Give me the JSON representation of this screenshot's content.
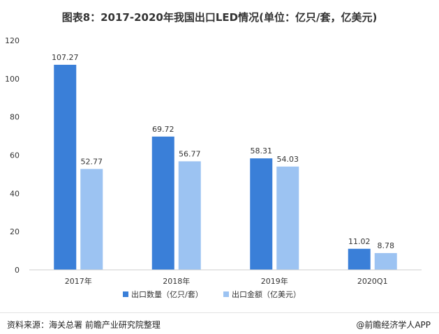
{
  "chart_data": {
    "type": "bar",
    "title": "图表8：2017-2020年我国出口LED情况(单位：亿只/套，亿美元)",
    "categories": [
      "2017年",
      "2018年",
      "2019年",
      "2020Q1"
    ],
    "series": [
      {
        "name": "出口数量（亿只/套）",
        "values": [
          107.27,
          69.72,
          58.31,
          11.02
        ],
        "color": "#3a7fd8"
      },
      {
        "name": "出口金额（亿美元）",
        "values": [
          52.77,
          56.77,
          54.03,
          8.78
        ],
        "color": "#9cc3f2"
      }
    ],
    "ylim": [
      0,
      120
    ],
    "yticks": [
      0,
      20,
      40,
      60,
      80,
      100,
      120
    ],
    "grid": false,
    "legend_position": "bottom"
  },
  "footer": {
    "source": "资料来源：海关总署 前瞻产业研究院整理",
    "brand": "@前瞻经济学人APP"
  },
  "colors": {
    "axis": "#cccccc",
    "text": "#333333"
  }
}
